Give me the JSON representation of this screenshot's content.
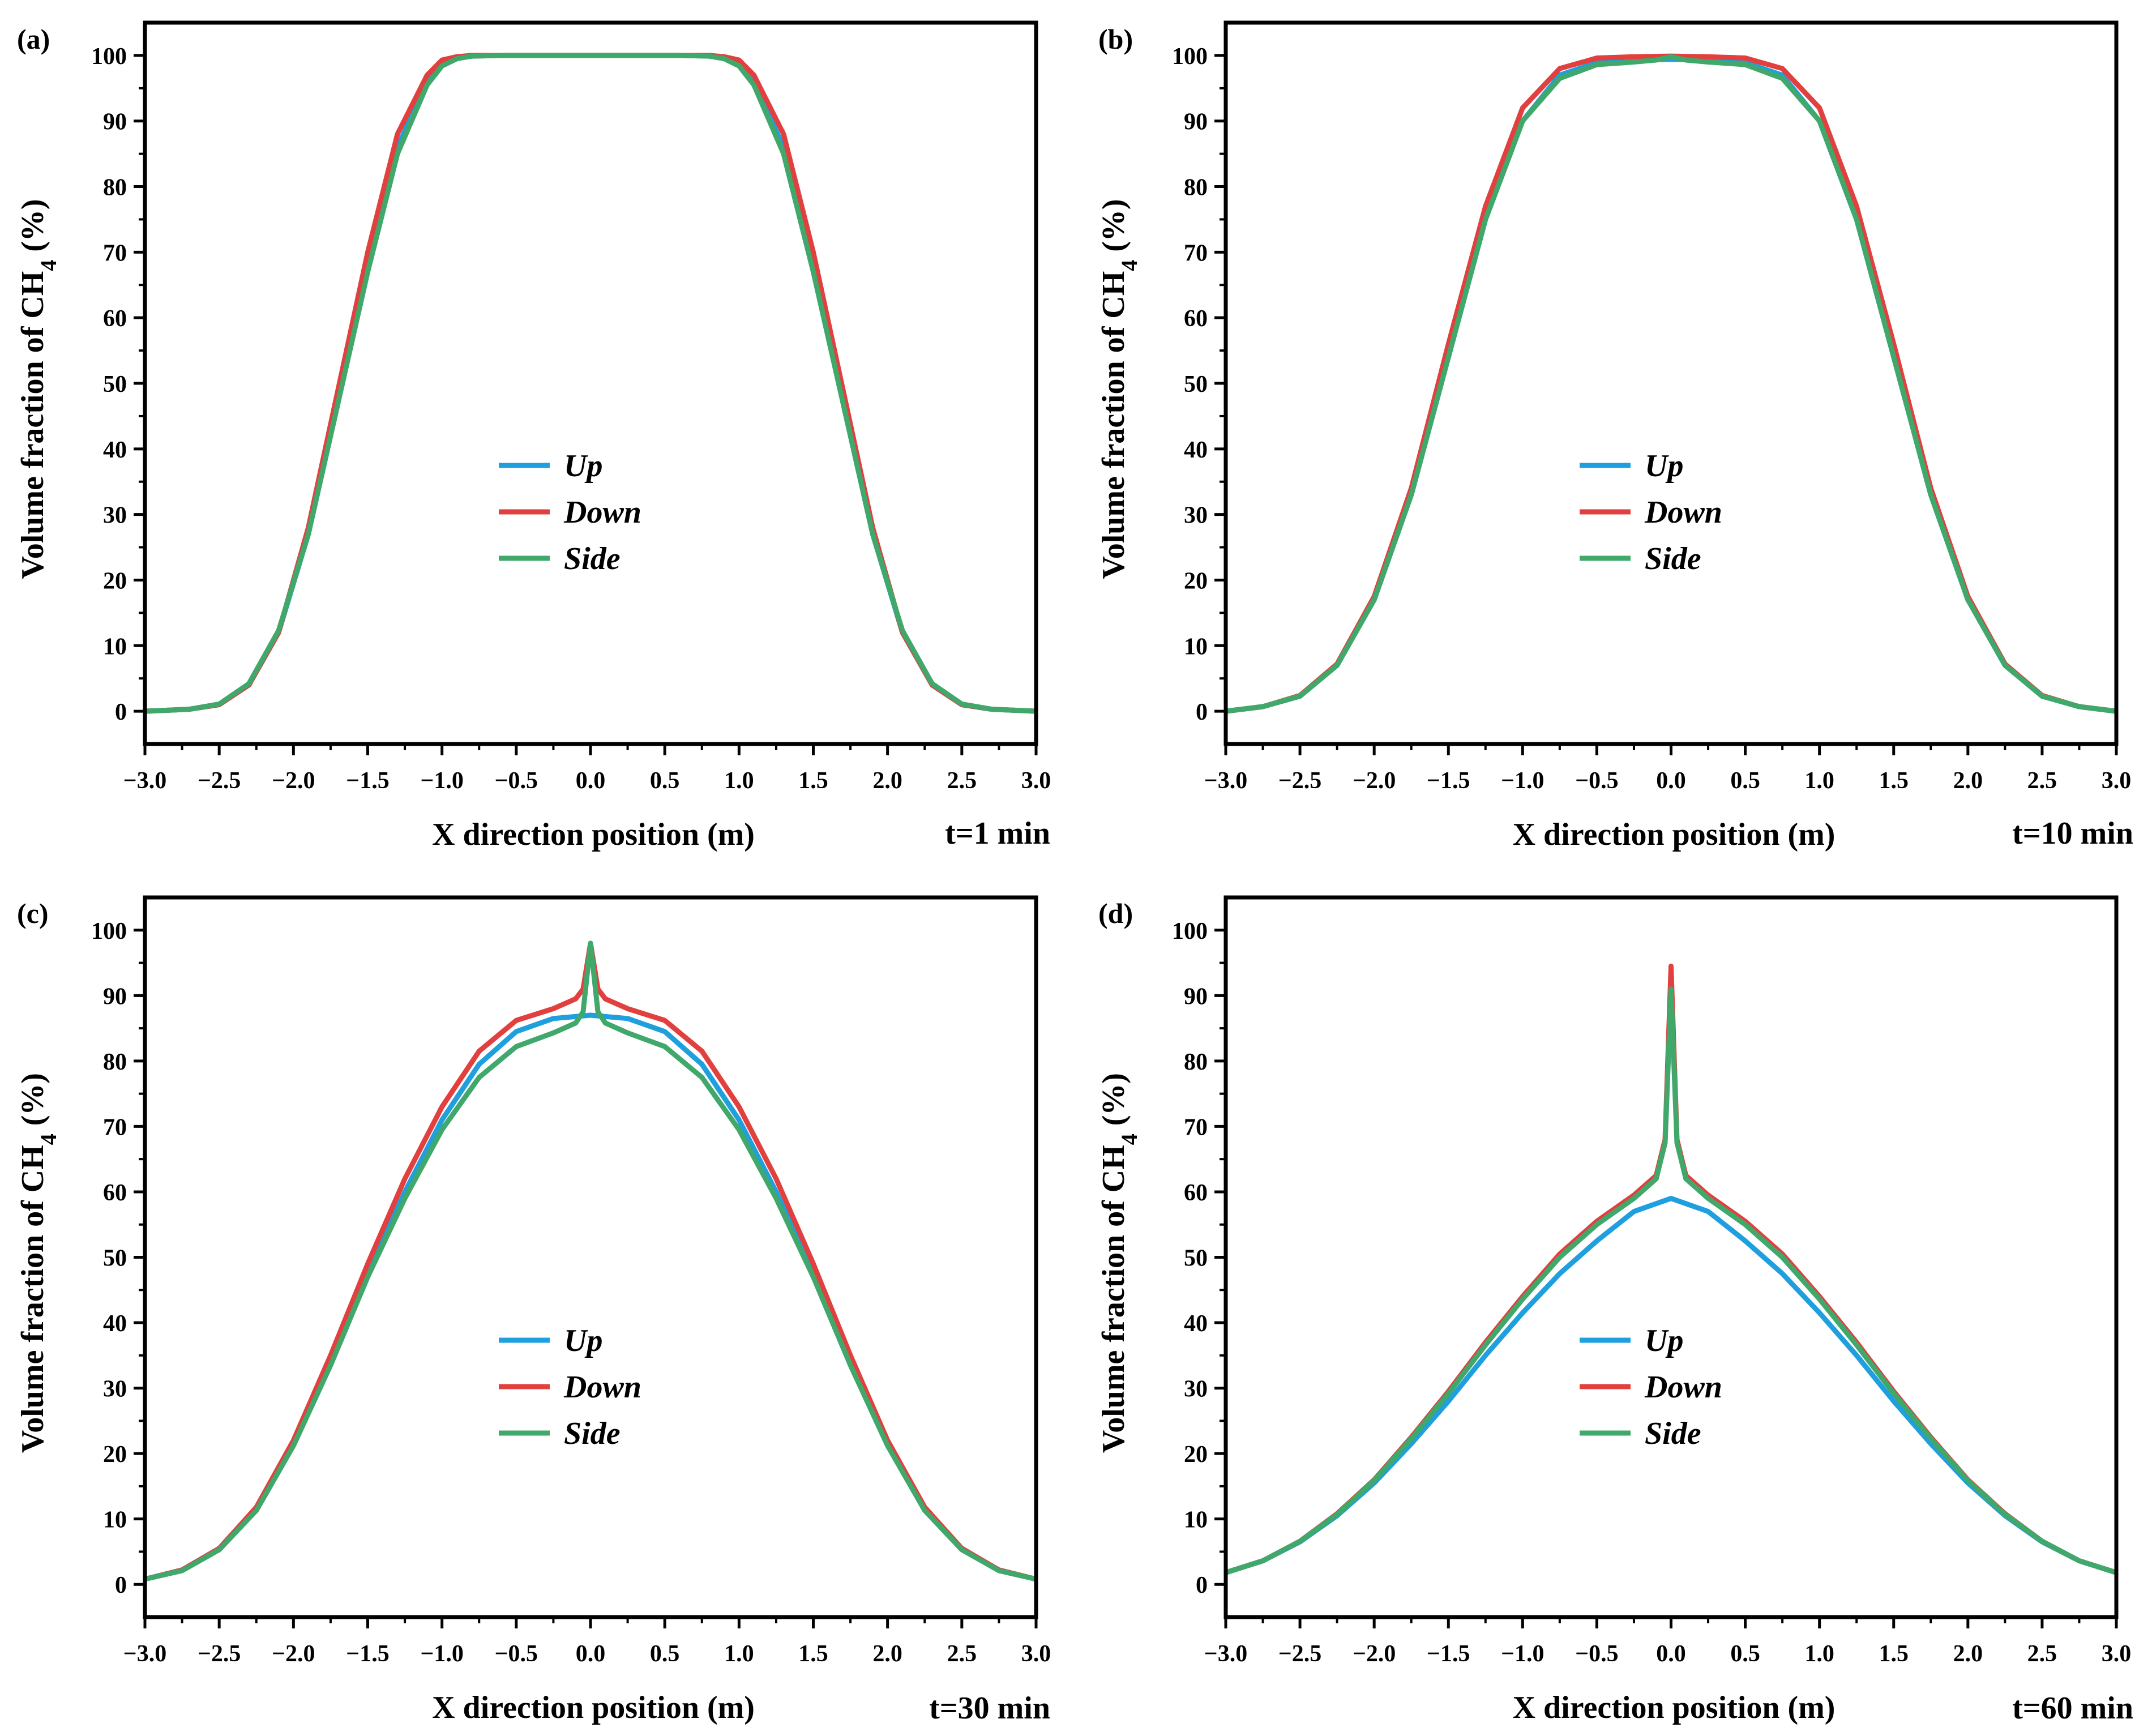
{
  "colors": {
    "up": "#1f9fde",
    "down": "#e2403f",
    "side": "#3fa86a",
    "axis": "#000000"
  },
  "chart_data": [
    {
      "type": "line",
      "panel_label": "(a)",
      "time_label": "t=1 min",
      "xlabel": "X direction position (m)",
      "ylabel_main": "Volume fraction of CH",
      "ylabel_sub": "4",
      "ylabel_tail": " (%)",
      "xlim": [
        -3.0,
        3.0
      ],
      "ylim": [
        -5,
        105
      ],
      "xticks": [
        "−3.0",
        "−2.5",
        "−2.0",
        "−1.5",
        "−1.0",
        "−0.5",
        "0.0",
        "0.5",
        "1.0",
        "1.5",
        "2.0",
        "2.5",
        "3.0"
      ],
      "yticks": [
        "0",
        "10",
        "20",
        "30",
        "40",
        "50",
        "60",
        "70",
        "80",
        "90",
        "100"
      ],
      "legend": [
        "Up",
        "Down",
        "Side"
      ],
      "series": [
        {
          "name": "Up",
          "x": [
            -3.0,
            -2.7,
            -2.5,
            -2.3,
            -2.1,
            -1.9,
            -1.7,
            -1.5,
            -1.3,
            -1.1,
            -1.0,
            -0.9,
            -0.8,
            -0.6,
            0.0,
            0.6,
            0.8,
            0.9,
            1.0,
            1.1,
            1.3,
            1.5,
            1.7,
            1.9,
            2.1,
            2.3,
            2.5,
            2.7,
            3.0
          ],
          "y": [
            0,
            0.3,
            1.0,
            4,
            12,
            27,
            47,
            68,
            86,
            96,
            98.7,
            99.6,
            99.9,
            100,
            100,
            100,
            99.9,
            99.6,
            98.7,
            96,
            86,
            68,
            47,
            27,
            12,
            4,
            1.0,
            0.3,
            0
          ]
        },
        {
          "name": "Down",
          "x": [
            -3.0,
            -2.7,
            -2.5,
            -2.3,
            -2.1,
            -1.9,
            -1.7,
            -1.5,
            -1.3,
            -1.1,
            -1.0,
            -0.9,
            -0.8,
            -0.6,
            0.0,
            0.6,
            0.8,
            0.9,
            1.0,
            1.1,
            1.3,
            1.5,
            1.7,
            1.9,
            2.1,
            2.3,
            2.5,
            2.7,
            3.0
          ],
          "y": [
            0,
            0.3,
            1.0,
            4,
            12,
            28,
            49,
            70,
            88,
            97,
            99.3,
            99.8,
            100,
            100,
            100,
            100,
            100,
            99.8,
            99.3,
            97,
            88,
            70,
            49,
            28,
            12,
            4,
            1.0,
            0.3,
            0
          ]
        },
        {
          "name": "Side",
          "x": [
            -3.0,
            -2.7,
            -2.5,
            -2.3,
            -2.1,
            -1.9,
            -1.7,
            -1.5,
            -1.3,
            -1.1,
            -1.0,
            -0.9,
            -0.8,
            -0.6,
            0.0,
            0.6,
            0.8,
            0.9,
            1.0,
            1.1,
            1.3,
            1.5,
            1.7,
            1.9,
            2.1,
            2.3,
            2.5,
            2.7,
            3.0
          ],
          "y": [
            0,
            0.3,
            1.1,
            4.2,
            12.3,
            27,
            47,
            67,
            85,
            95.5,
            98.4,
            99.5,
            99.9,
            100,
            100,
            100,
            99.9,
            99.5,
            98.4,
            95.5,
            85,
            67,
            47,
            27,
            12.3,
            4.2,
            1.1,
            0.3,
            0
          ]
        }
      ]
    },
    {
      "type": "line",
      "panel_label": "(b)",
      "time_label": "t=10 min",
      "xlabel": "X direction position (m)",
      "ylabel_main": "Volume fraction of CH",
      "ylabel_sub": "4",
      "ylabel_tail": " (%)",
      "xlim": [
        -3.0,
        3.0
      ],
      "ylim": [
        -5,
        105
      ],
      "xticks": [
        "−3.0",
        "−2.5",
        "−2.0",
        "−1.5",
        "−1.0",
        "−0.5",
        "0.0",
        "0.5",
        "1.0",
        "1.5",
        "2.0",
        "2.5",
        "3.0"
      ],
      "yticks": [
        "0",
        "10",
        "20",
        "30",
        "40",
        "50",
        "60",
        "70",
        "80",
        "90",
        "100"
      ],
      "legend": [
        "Up",
        "Down",
        "Side"
      ],
      "series": [
        {
          "name": "Up",
          "x": [
            -3.0,
            -2.75,
            -2.5,
            -2.25,
            -2.0,
            -1.75,
            -1.5,
            -1.25,
            -1.0,
            -0.75,
            -0.5,
            -0.25,
            0.0,
            0.25,
            0.5,
            0.75,
            1.0,
            1.25,
            1.5,
            1.75,
            2.0,
            2.25,
            2.5,
            2.75,
            3.0
          ],
          "y": [
            0,
            0.7,
            2.3,
            7,
            17,
            33,
            54,
            75,
            90,
            97,
            98.9,
            99.3,
            99.4,
            99.3,
            98.9,
            97,
            90,
            75,
            54,
            33,
            17,
            7,
            2.3,
            0.7,
            0
          ]
        },
        {
          "name": "Down",
          "x": [
            -3.0,
            -2.75,
            -2.5,
            -2.25,
            -2.0,
            -1.75,
            -1.5,
            -1.25,
            -1.0,
            -0.75,
            -0.5,
            -0.25,
            0.0,
            0.25,
            0.5,
            0.75,
            1.0,
            1.25,
            1.5,
            1.75,
            2.0,
            2.25,
            2.5,
            2.75,
            3.0
          ],
          "y": [
            0,
            0.7,
            2.4,
            7.2,
            17.5,
            34,
            56,
            77,
            92,
            98,
            99.6,
            99.8,
            99.9,
            99.8,
            99.6,
            98,
            92,
            77,
            56,
            34,
            17.5,
            7.2,
            2.4,
            0.7,
            0
          ]
        },
        {
          "name": "Side",
          "x": [
            -3.0,
            -2.75,
            -2.5,
            -2.25,
            -2.0,
            -1.75,
            -1.5,
            -1.25,
            -1.0,
            -0.75,
            -0.5,
            -0.25,
            -0.1,
            0.0,
            0.1,
            0.25,
            0.5,
            0.75,
            1.0,
            1.25,
            1.5,
            1.75,
            2.0,
            2.25,
            2.5,
            2.75,
            3.0
          ],
          "y": [
            0,
            0.7,
            2.3,
            7,
            17,
            33,
            54,
            75,
            90,
            96.5,
            98.6,
            99.0,
            99.3,
            99.8,
            99.3,
            99.0,
            98.6,
            96.5,
            90,
            75,
            54,
            33,
            17,
            7,
            2.3,
            0.7,
            0
          ]
        }
      ]
    },
    {
      "type": "line",
      "panel_label": "(c)",
      "time_label": "t=30 min",
      "xlabel": "X direction position (m)",
      "ylabel_main": "Volume fraction of CH",
      "ylabel_sub": "4",
      "ylabel_tail": " (%)",
      "xlim": [
        -3.0,
        3.0
      ],
      "ylim": [
        -5,
        105
      ],
      "xticks": [
        "−3.0",
        "−2.5",
        "−2.0",
        "−1.5",
        "−1.0",
        "−0.5",
        "0.0",
        "0.5",
        "1.0",
        "1.5",
        "2.0",
        "2.5",
        "3.0"
      ],
      "yticks": [
        "0",
        "10",
        "20",
        "30",
        "40",
        "50",
        "60",
        "70",
        "80",
        "90",
        "100"
      ],
      "legend": [
        "Up",
        "Down",
        "Side"
      ],
      "series": [
        {
          "name": "Up",
          "x": [
            -3.0,
            -2.75,
            -2.5,
            -2.25,
            -2.0,
            -1.75,
            -1.5,
            -1.25,
            -1.0,
            -0.75,
            -0.5,
            -0.25,
            0.0,
            0.25,
            0.5,
            0.75,
            1.0,
            1.25,
            1.5,
            1.75,
            2.0,
            2.25,
            2.5,
            2.75,
            3.0
          ],
          "y": [
            0.8,
            2.2,
            5.5,
            11.5,
            21.5,
            34,
            47.5,
            60,
            71,
            79.5,
            84.5,
            86.5,
            87,
            86.5,
            84.5,
            79.5,
            71,
            60,
            47.5,
            34,
            21.5,
            11.5,
            5.5,
            2.2,
            0.8
          ]
        },
        {
          "name": "Down",
          "x": [
            -3.0,
            -2.75,
            -2.5,
            -2.25,
            -2.0,
            -1.75,
            -1.5,
            -1.25,
            -1.0,
            -0.75,
            -0.5,
            -0.25,
            -0.1,
            -0.05,
            0.0,
            0.05,
            0.1,
            0.25,
            0.5,
            0.75,
            1.0,
            1.25,
            1.5,
            1.75,
            2.0,
            2.25,
            2.5,
            2.75,
            3.0
          ],
          "y": [
            0.8,
            2.2,
            5.5,
            11.8,
            22,
            35,
            49,
            62,
            73,
            81.5,
            86.2,
            88,
            89.5,
            91,
            98,
            91,
            89.5,
            88,
            86.2,
            81.5,
            73,
            62,
            49,
            35,
            22,
            11.8,
            5.5,
            2.2,
            0.8
          ]
        },
        {
          "name": "Side",
          "x": [
            -3.0,
            -2.75,
            -2.5,
            -2.25,
            -2.0,
            -1.75,
            -1.5,
            -1.25,
            -1.0,
            -0.75,
            -0.5,
            -0.25,
            -0.1,
            -0.05,
            0.0,
            0.05,
            0.1,
            0.25,
            0.5,
            0.75,
            1.0,
            1.25,
            1.5,
            1.75,
            2.0,
            2.25,
            2.5,
            2.75,
            3.0
          ],
          "y": [
            0.8,
            2.1,
            5.3,
            11.3,
            21.2,
            33.5,
            47,
            59,
            69.5,
            77.5,
            82.2,
            84.3,
            85.8,
            87.5,
            98,
            87.5,
            85.8,
            84.3,
            82.2,
            77.5,
            69.5,
            59,
            47,
            33.5,
            21.2,
            11.3,
            5.3,
            2.1,
            0.8
          ]
        }
      ]
    },
    {
      "type": "line",
      "panel_label": "(d)",
      "time_label": "t=60 min",
      "xlabel": "X direction position (m)",
      "ylabel_main": "Volume fraction of CH",
      "ylabel_sub": "4",
      "ylabel_tail": " (%)",
      "xlim": [
        -3.0,
        3.0
      ],
      "ylim": [
        -5,
        105
      ],
      "xticks": [
        "−3.0",
        "−2.5",
        "−2.0",
        "−1.5",
        "−1.0",
        "−0.5",
        "0.0",
        "0.5",
        "1.0",
        "1.5",
        "2.0",
        "2.5",
        "3.0"
      ],
      "yticks": [
        "0",
        "10",
        "20",
        "30",
        "40",
        "50",
        "60",
        "70",
        "80",
        "90",
        "100"
      ],
      "legend": [
        "Up",
        "Down",
        "Side"
      ],
      "series": [
        {
          "name": "Up",
          "x": [
            -3.0,
            -2.75,
            -2.5,
            -2.25,
            -2.0,
            -1.75,
            -1.5,
            -1.25,
            -1.0,
            -0.75,
            -0.5,
            -0.25,
            0.0,
            0.25,
            0.5,
            0.75,
            1.0,
            1.25,
            1.5,
            1.75,
            2.0,
            2.25,
            2.5,
            2.75,
            3.0
          ],
          "y": [
            1.8,
            3.6,
            6.5,
            10.5,
            15.5,
            21.5,
            28,
            35,
            41.5,
            47.5,
            52.5,
            57,
            59,
            57,
            52.5,
            47.5,
            41.5,
            35,
            28,
            21.5,
            15.5,
            10.5,
            6.5,
            3.6,
            1.8
          ]
        },
        {
          "name": "Down",
          "x": [
            -3.0,
            -2.75,
            -2.5,
            -2.25,
            -2.0,
            -1.75,
            -1.5,
            -1.25,
            -1.0,
            -0.75,
            -0.5,
            -0.25,
            -0.1,
            -0.04,
            0.0,
            0.04,
            0.1,
            0.25,
            0.5,
            0.75,
            1.0,
            1.25,
            1.5,
            1.75,
            2.0,
            2.25,
            2.5,
            2.75,
            3.0
          ],
          "y": [
            1.8,
            3.6,
            6.6,
            10.8,
            16,
            22.5,
            29.5,
            37,
            44,
            50.5,
            55.5,
            59.5,
            62.5,
            68,
            94.5,
            68,
            62.5,
            59.5,
            55.5,
            50.5,
            44,
            37,
            29.5,
            22.5,
            16,
            10.8,
            6.6,
            3.6,
            1.8
          ]
        },
        {
          "name": "Side",
          "x": [
            -3.0,
            -2.75,
            -2.5,
            -2.25,
            -2.0,
            -1.75,
            -1.5,
            -1.25,
            -1.0,
            -0.75,
            -0.5,
            -0.25,
            -0.1,
            -0.04,
            0.0,
            0.04,
            0.1,
            0.25,
            0.5,
            0.75,
            1.0,
            1.25,
            1.5,
            1.75,
            2.0,
            2.25,
            2.5,
            2.75,
            3.0
          ],
          "y": [
            1.8,
            3.6,
            6.6,
            10.7,
            15.9,
            22.3,
            29.2,
            36.6,
            43.6,
            50,
            55,
            59,
            62,
            67.5,
            91,
            67.5,
            62,
            59,
            55,
            50,
            43.6,
            36.6,
            29.2,
            22.3,
            15.9,
            10.7,
            6.6,
            3.6,
            1.8
          ]
        }
      ]
    }
  ]
}
